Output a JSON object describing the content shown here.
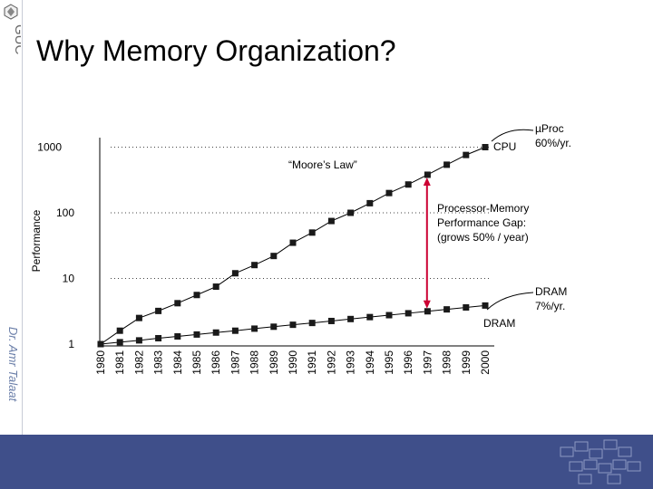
{
  "branding": {
    "logo_text": "GUC",
    "author": "Dr. Amr Talaat"
  },
  "slide": {
    "title": "Why Memory Organization?"
  },
  "chart_data": {
    "type": "line",
    "ylabel": "Performance",
    "yscale": "log",
    "ylim": [
      1,
      1000
    ],
    "ytick_labels": [
      "1",
      "10",
      "100",
      "1000"
    ],
    "categories": [
      "1980",
      "1981",
      "1982",
      "1983",
      "1984",
      "1985",
      "1986",
      "1987",
      "1988",
      "1989",
      "1990",
      "1991",
      "1992",
      "1993",
      "1994",
      "1995",
      "1996",
      "1997",
      "1998",
      "1999",
      "2000"
    ],
    "series": [
      {
        "name": "CPU",
        "color": "#000000",
        "values": [
          1,
          1.6,
          2.5,
          3.2,
          4.2,
          5.6,
          7.5,
          12,
          16,
          22,
          35,
          50,
          75,
          100,
          140,
          200,
          270,
          380,
          540,
          760,
          1000
        ]
      },
      {
        "name": "DRAM",
        "color": "#000000",
        "values": [
          1,
          1.07,
          1.14,
          1.23,
          1.31,
          1.4,
          1.5,
          1.6,
          1.72,
          1.84,
          1.97,
          2.1,
          2.25,
          2.41,
          2.58,
          2.76,
          2.95,
          3.16,
          3.38,
          3.62,
          3.87
        ]
      }
    ],
    "annotations": {
      "moore": "“Moore’s Law”",
      "cpu_label": "CPU",
      "dram_label": "DRAM",
      "cpu_rate": [
        "µProc",
        "60%/yr."
      ],
      "dram_rate": [
        "DRAM",
        "7%/yr."
      ],
      "gap": [
        "Processor-Memory",
        "Performance Gap:",
        "(grows 50% / year)"
      ]
    },
    "grid": "dotted",
    "gap_arrow_color": "#cc0033"
  }
}
